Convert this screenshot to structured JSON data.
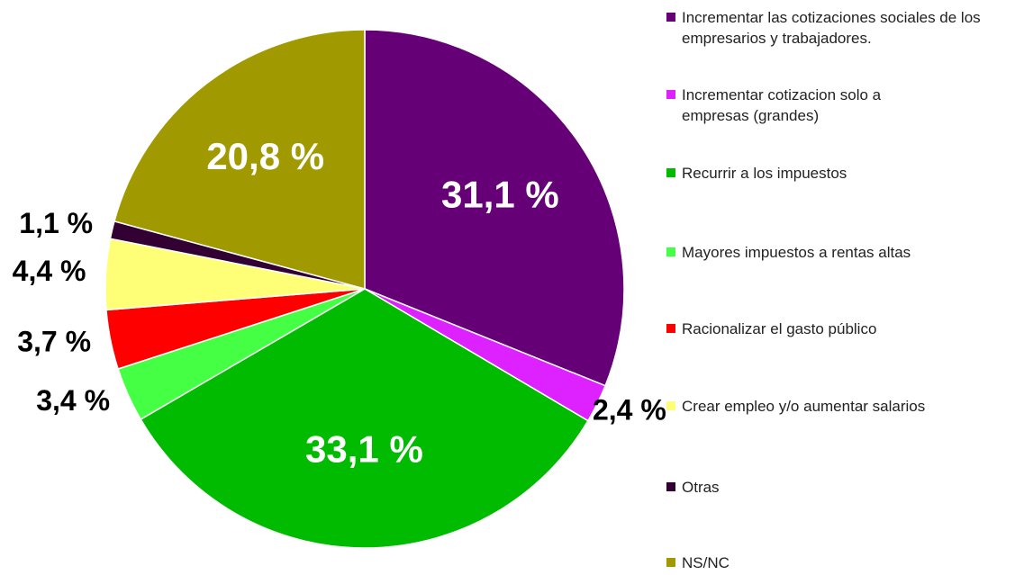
{
  "chart_data": {
    "type": "pie",
    "categories": [
      "Incrementar las cotizaciones sociales de los empresarios y trabajadores.",
      "Incrementar cotizacion solo a empresas (grandes)",
      "Recurrir a los impuestos",
      "Mayores impuestos a rentas altas",
      "Racionalizar el gasto público",
      "Crear empleo y/o aumentar salarios",
      "Otras",
      "NS/NC"
    ],
    "values": [
      31.1,
      2.4,
      33.1,
      3.4,
      3.7,
      4.4,
      1.1,
      20.8
    ],
    "value_labels": [
      "31,1 %",
      "2,4 %",
      "33,1 %",
      "3,4 %",
      "3,7 %",
      "4,4 %",
      "1,1 %",
      "20,8 %"
    ],
    "colors": [
      "#660077",
      "#dd22ff",
      "#00bb00",
      "#44ff44",
      "#ff0000",
      "#ffff77",
      "#330033",
      "#a09a00"
    ],
    "legend": "right"
  }
}
